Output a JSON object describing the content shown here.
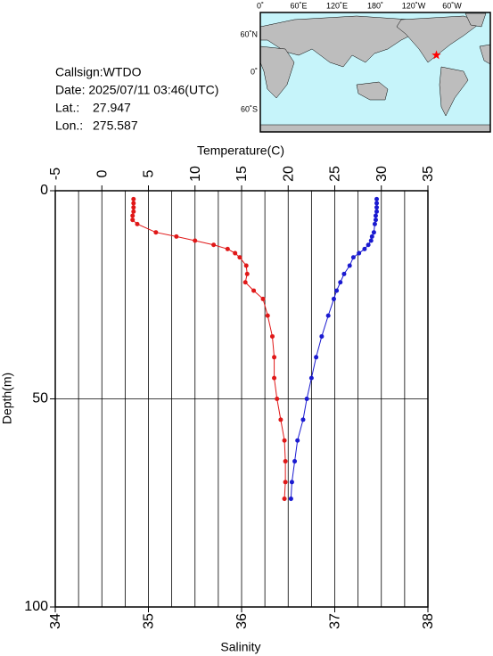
{
  "chart_data": {
    "type": "profile",
    "x_label": "Salinity",
    "x2_label": "Temperature(C)",
    "y_label": "Depth(m)",
    "xlim": [
      34,
      38
    ],
    "xticks": [
      34,
      35,
      36,
      37,
      38
    ],
    "x2lim": [
      -5,
      35
    ],
    "x2ticks": [
      -5,
      0,
      5,
      10,
      15,
      20,
      25,
      30,
      35
    ],
    "ylim": [
      0,
      100
    ],
    "yticks": [
      0,
      50,
      100
    ],
    "xgrid": [
      34.25,
      34.5,
      34.75,
      35,
      35.25,
      35.5,
      35.75,
      36,
      36.25,
      36.5,
      36.75,
      37,
      37.25,
      37.5,
      37.75
    ],
    "ygrid": [
      50
    ],
    "depth": [
      2,
      3,
      4,
      5,
      6,
      7,
      8,
      10,
      11,
      12,
      13,
      14,
      15,
      16,
      18,
      20,
      22,
      24,
      26,
      30,
      35,
      40,
      45,
      50,
      55,
      60,
      65,
      70,
      74
    ],
    "series": [
      {
        "axis": "x",
        "color": "#e01818",
        "values": [
          34.84,
          34.84,
          34.84,
          34.84,
          34.83,
          34.83,
          34.88,
          35.08,
          35.3,
          35.5,
          35.7,
          35.85,
          35.93,
          35.98,
          36.05,
          36.06,
          36.04,
          36.13,
          36.23,
          36.28,
          36.33,
          36.35,
          36.35,
          36.38,
          36.42,
          36.46,
          36.47,
          36.47,
          36.46
        ]
      },
      {
        "axis": "x2",
        "color": "#1a1ad0",
        "values": [
          29.5,
          29.5,
          29.5,
          29.5,
          29.4,
          29.4,
          29.3,
          29.2,
          29.0,
          28.9,
          28.6,
          28.2,
          27.6,
          27.0,
          26.6,
          26.0,
          25.6,
          25.2,
          24.9,
          24.3,
          23.6,
          23.0,
          22.5,
          22.0,
          21.6,
          21.0,
          20.7,
          20.4,
          20.3
        ]
      }
    ]
  },
  "info": {
    "callsign": "Callsign:WTDO",
    "date": "Date:  2025/07/11 03:46(UTC)",
    "lat_label": "Lat.:",
    "lat": 27.947,
    "lon_label": "Lon.:",
    "lon": 275.587
  },
  "map": {
    "lon_labels": [
      "0˚",
      "60˚E",
      "120˚E",
      "180˚",
      "120˚W",
      "60˚W"
    ],
    "lat_labels": [
      "60˚N",
      "0˚",
      "60˚S"
    ]
  }
}
